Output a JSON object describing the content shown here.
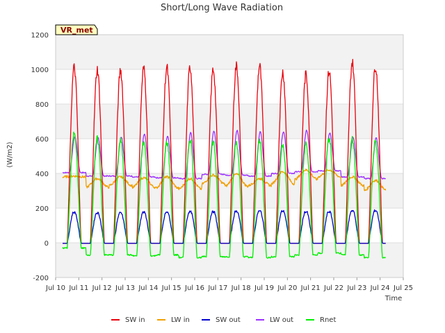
{
  "chart_data": {
    "type": "line",
    "title": "Short/Long Wave Radiation",
    "xlabel": "Time",
    "ylabel": "(W/m2)",
    "badge": "VR_met",
    "xlim": [
      10,
      25
    ],
    "ylim": [
      -200,
      1200
    ],
    "x_ticks": [
      10,
      11,
      12,
      13,
      14,
      15,
      16,
      17,
      18,
      19,
      20,
      21,
      22,
      23,
      24,
      25
    ],
    "x_tick_labels": [
      "Jul 10",
      "Jul 11",
      "Jul 12",
      "Jul 13",
      "Jul 14",
      "Jul 15",
      "Jul 16",
      "Jul 17",
      "Jul 18",
      "Jul 19",
      "Jul 20",
      "Jul 21",
      "Jul 22",
      "Jul 23",
      "Jul 24",
      "Jul 25"
    ],
    "y_ticks": [
      -200,
      0,
      200,
      400,
      600,
      800,
      1000,
      1200
    ],
    "grid": true,
    "legend_position": "bottom",
    "data_range_days": [
      10.3,
      24.25
    ],
    "day_peaks": [
      10.8,
      11.8,
      12.8,
      13.8,
      14.8,
      15.8,
      16.8,
      17.8,
      18.8,
      19.8,
      20.8,
      21.8,
      22.8,
      23.8
    ],
    "series": [
      {
        "name": "SW in",
        "color": "#e8000b",
        "day_max": [
          1010,
          1000,
          995,
          1005,
          1010,
          1012,
          1000,
          1020,
          1020,
          985,
          970,
          990,
          1040,
          1020
        ]
      },
      {
        "name": "LW in",
        "color": "#f0a000",
        "day_max": [
          385,
          370,
          380,
          375,
          380,
          370,
          390,
          395,
          370,
          410,
          420,
          420,
          380,
          360
        ],
        "night_min": [
          380,
          320,
          330,
          320,
          315,
          310,
          340,
          325,
          330,
          340,
          365,
          380,
          330,
          300
        ]
      },
      {
        "name": "SW out",
        "color": "#0000cc",
        "day_max": [
          175,
          172,
          172,
          175,
          175,
          178,
          178,
          182,
          182,
          182,
          178,
          178,
          185,
          185
        ]
      },
      {
        "name": "LW out",
        "color": "#9b30ff",
        "day_max": [
          610,
          605,
          610,
          625,
          615,
          635,
          645,
          648,
          640,
          640,
          648,
          632,
          610,
          605
        ],
        "night_min": [
          405,
          385,
          385,
          380,
          375,
          370,
          395,
          390,
          385,
          400,
          410,
          415,
          380,
          370
        ]
      },
      {
        "name": "Rnet",
        "color": "#00ee00",
        "day_max": [
          630,
          600,
          590,
          580,
          580,
          600,
          585,
          580,
          590,
          570,
          570,
          600,
          600,
          580
        ],
        "night_min": [
          -30,
          -70,
          -70,
          -75,
          -70,
          -85,
          -80,
          -80,
          -85,
          -80,
          -70,
          -60,
          -70,
          -85
        ]
      }
    ]
  }
}
